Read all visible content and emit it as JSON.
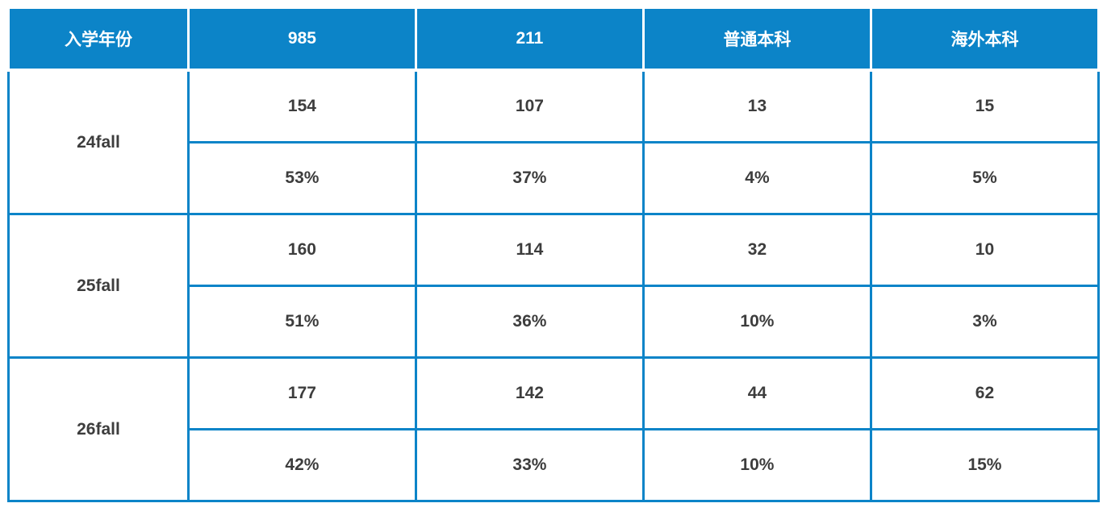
{
  "colors": {
    "header_bg": "#0c84c8",
    "header_text": "#ffffff",
    "border": "#0c84c8",
    "body_text": "#3d3d3d"
  },
  "chart_data": {
    "type": "table",
    "columns": [
      "入学年份",
      "985",
      "211",
      "普通本科",
      "海外本科"
    ],
    "rows": [
      {
        "year": "24fall",
        "counts": [
          154,
          107,
          13,
          15
        ],
        "percents": [
          "53%",
          "37%",
          "4%",
          "5%"
        ]
      },
      {
        "year": "25fall",
        "counts": [
          160,
          114,
          32,
          10
        ],
        "percents": [
          "51%",
          "36%",
          "10%",
          "3%"
        ]
      },
      {
        "year": "26fall",
        "counts": [
          177,
          142,
          44,
          62
        ],
        "percents": [
          "42%",
          "33%",
          "10%",
          "15%"
        ]
      }
    ]
  }
}
